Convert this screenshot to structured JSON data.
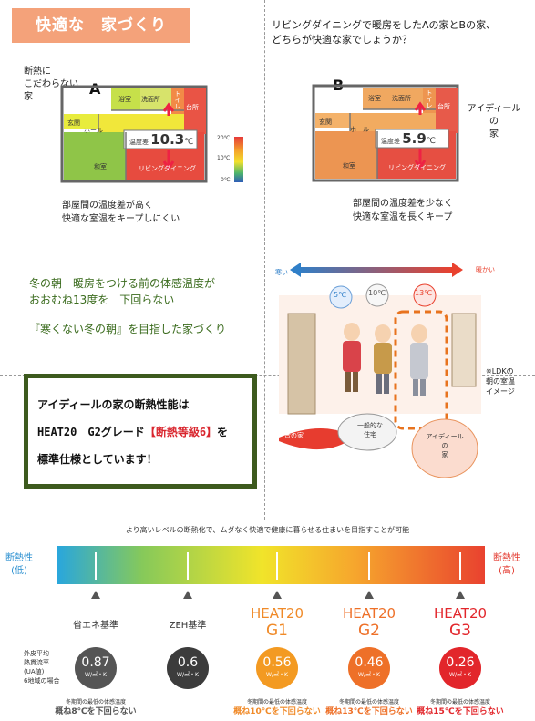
{
  "title": "快適な　家づくり",
  "question": [
    "リビングダイニングで暖房をしたAの家とBの家、",
    "どちらが快適な家でしょうか？"
  ],
  "houseA": {
    "label": "A",
    "desc": [
      "断熱に",
      "こだわらない",
      "家"
    ],
    "rooms": {
      "bath": "浴室",
      "wash": "洗面所",
      "toilet": "トイレ",
      "kitchen": "台所",
      "entrance": "玄関",
      "hall": "ホール",
      "japanese": "和室",
      "living": "リビングダイニング"
    },
    "diff_label": "温度差",
    "diff_value": "10.3",
    "diff_unit": "℃",
    "caption": [
      "部屋間の温度差が高く",
      "快適な室温をキープしにくい"
    ]
  },
  "houseB": {
    "label": "B",
    "desc": [
      "アイディール",
      "の",
      "家"
    ],
    "rooms": {
      "bath": "浴室",
      "wash": "洗面所",
      "toilet": "トイレ",
      "kitchen": "台所",
      "entrance": "玄関",
      "hall": "ホール",
      "japanese": "和室",
      "living": "リビングダイニング"
    },
    "diff_label": "温度差",
    "diff_value": "5.9",
    "diff_unit": "℃",
    "caption": [
      "部屋間の温度差を少なく",
      "快適な室温を長くキープ"
    ]
  },
  "scale": {
    "top": "20℃",
    "mid": "10℃",
    "bottom": "0℃"
  },
  "morning": {
    "line1": "冬の朝　暖房をつける前の体感温度が",
    "line2": "おおむね13度を　下回らない",
    "line3": "『寒くない冬の朝』を目指した家づくり"
  },
  "illustration": {
    "cold": "寒い",
    "warm": "暖かい",
    "temps": [
      "5℃",
      "10℃",
      "13℃"
    ],
    "old_house": "昔の家",
    "general_house": [
      "一般的な",
      "住宅"
    ],
    "ideal_house": [
      "アイディール",
      "の",
      "家"
    ],
    "note": [
      "※LDKの",
      "朝の室温",
      "イメージ"
    ]
  },
  "spec": {
    "line1": "アイディールの家の断熱性能は",
    "line2_a": "HEAT20　G2グレード",
    "line2_b": "【断熱等級6】",
    "line2_c": "を",
    "line3": "標準仕様としています！"
  },
  "levels": {
    "headline": "より高いレベルの断熱化で、ムダなく快適で健康に暮らせる住まいを目指すことが可能",
    "low": [
      "断熱性",
      "(低)"
    ],
    "high": [
      "断熱性",
      "(高)"
    ],
    "ua_label": [
      "外皮平均",
      "熱貫流率",
      "(UA値)",
      "6地域の場合"
    ],
    "unit": "W/㎡・K",
    "items": [
      {
        "name": "省エネ基準",
        "value": "0.87",
        "note_top": "冬期間の最低の体感温度",
        "note_bottom": "概ね8℃を下回らない",
        "color": "#555555"
      },
      {
        "name": "ZEH基準",
        "value": "0.6",
        "note_top": "",
        "note_bottom": "",
        "color": "#3c3c3c"
      },
      {
        "name": "HEAT20",
        "grade": "G1",
        "value": "0.56",
        "note_top": "冬期間の最低の体感温度",
        "note_bottom": "概ね10℃を下回らない",
        "color": "#f39a22"
      },
      {
        "name": "HEAT20",
        "grade": "G2",
        "value": "0.46",
        "note_top": "冬期間の最低の体感温度",
        "note_bottom": "概ね13℃を下回らない",
        "color": "#ee7028"
      },
      {
        "name": "HEAT20",
        "grade": "G3",
        "value": "0.26",
        "note_top": "冬期間の最低の体感温度",
        "note_bottom": "概ね15℃を下回らない",
        "color": "#e2262b"
      }
    ]
  }
}
